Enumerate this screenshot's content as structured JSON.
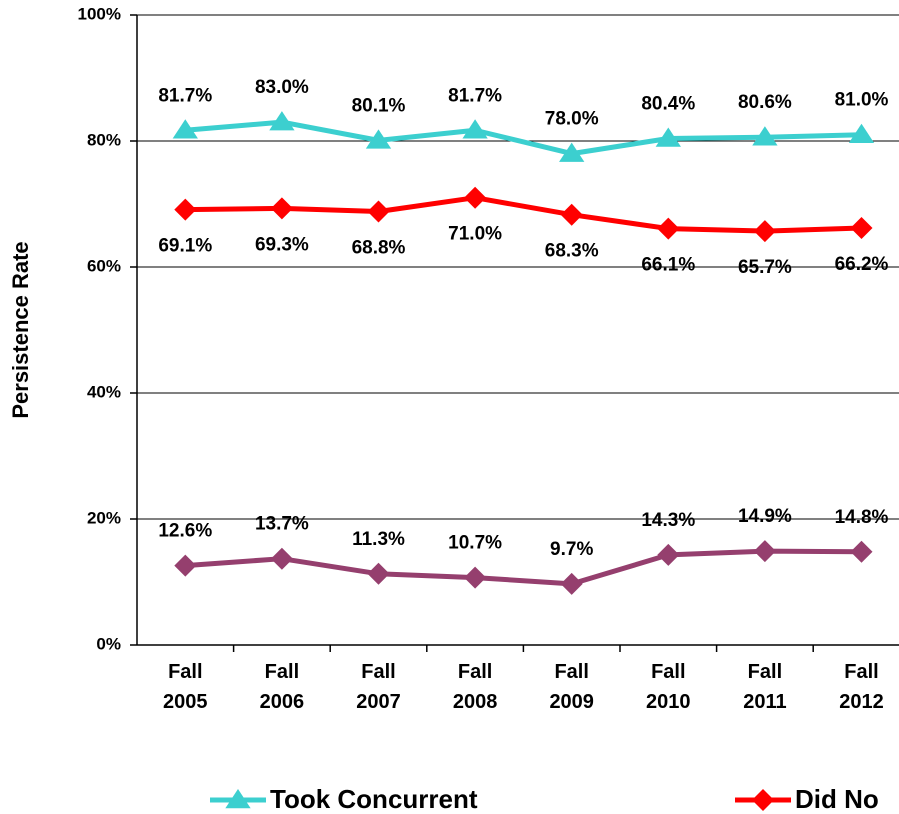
{
  "chart_data": {
    "type": "line",
    "y_axis_label": "Persistence Rate",
    "categories": [
      "Fall 2005",
      "Fall 2006",
      "Fall 2007",
      "Fall 2008",
      "Fall 2009",
      "Fall 2010",
      "Fall 2011",
      "Fall 2012"
    ],
    "series": [
      {
        "name": "Took Concurrent",
        "color": "#3ccfcf",
        "marker": "triangle",
        "values": [
          81.7,
          83.0,
          80.1,
          81.7,
          78.0,
          80.4,
          80.6,
          81.0
        ],
        "value_labels": [
          "81.7%",
          "83.0%",
          "80.1%",
          "81.7%",
          "78.0%",
          "80.4%",
          "80.6%",
          "81.0%"
        ]
      },
      {
        "name": "Did No",
        "color": "#ff0000",
        "marker": "diamond",
        "values": [
          69.1,
          69.3,
          68.8,
          71.0,
          68.3,
          66.1,
          65.7,
          66.2
        ],
        "value_labels": [
          "69.1%",
          "69.3%",
          "68.8%",
          "71.0%",
          "68.3%",
          "66.1%",
          "65.7%",
          "66.2%"
        ]
      },
      {
        "color": "#953f6e",
        "marker": "diamond",
        "values": [
          12.6,
          13.7,
          11.3,
          10.7,
          9.7,
          14.3,
          14.9,
          14.8
        ],
        "value_labels": [
          "12.6%",
          "13.7%",
          "11.3%",
          "10.7%",
          "9.7%",
          "14.3%",
          "14.9%",
          "14.8%"
        ]
      }
    ],
    "ylim": [
      0,
      100
    ],
    "yticks": [
      {
        "value": 0,
        "label": "0%"
      },
      {
        "value": 20,
        "label": "20%"
      },
      {
        "value": 40,
        "label": "40%"
      },
      {
        "value": 60,
        "label": "60%"
      },
      {
        "value": 80,
        "label": "80%"
      },
      {
        "value": 100,
        "label": "100%"
      }
    ],
    "grid": true
  }
}
